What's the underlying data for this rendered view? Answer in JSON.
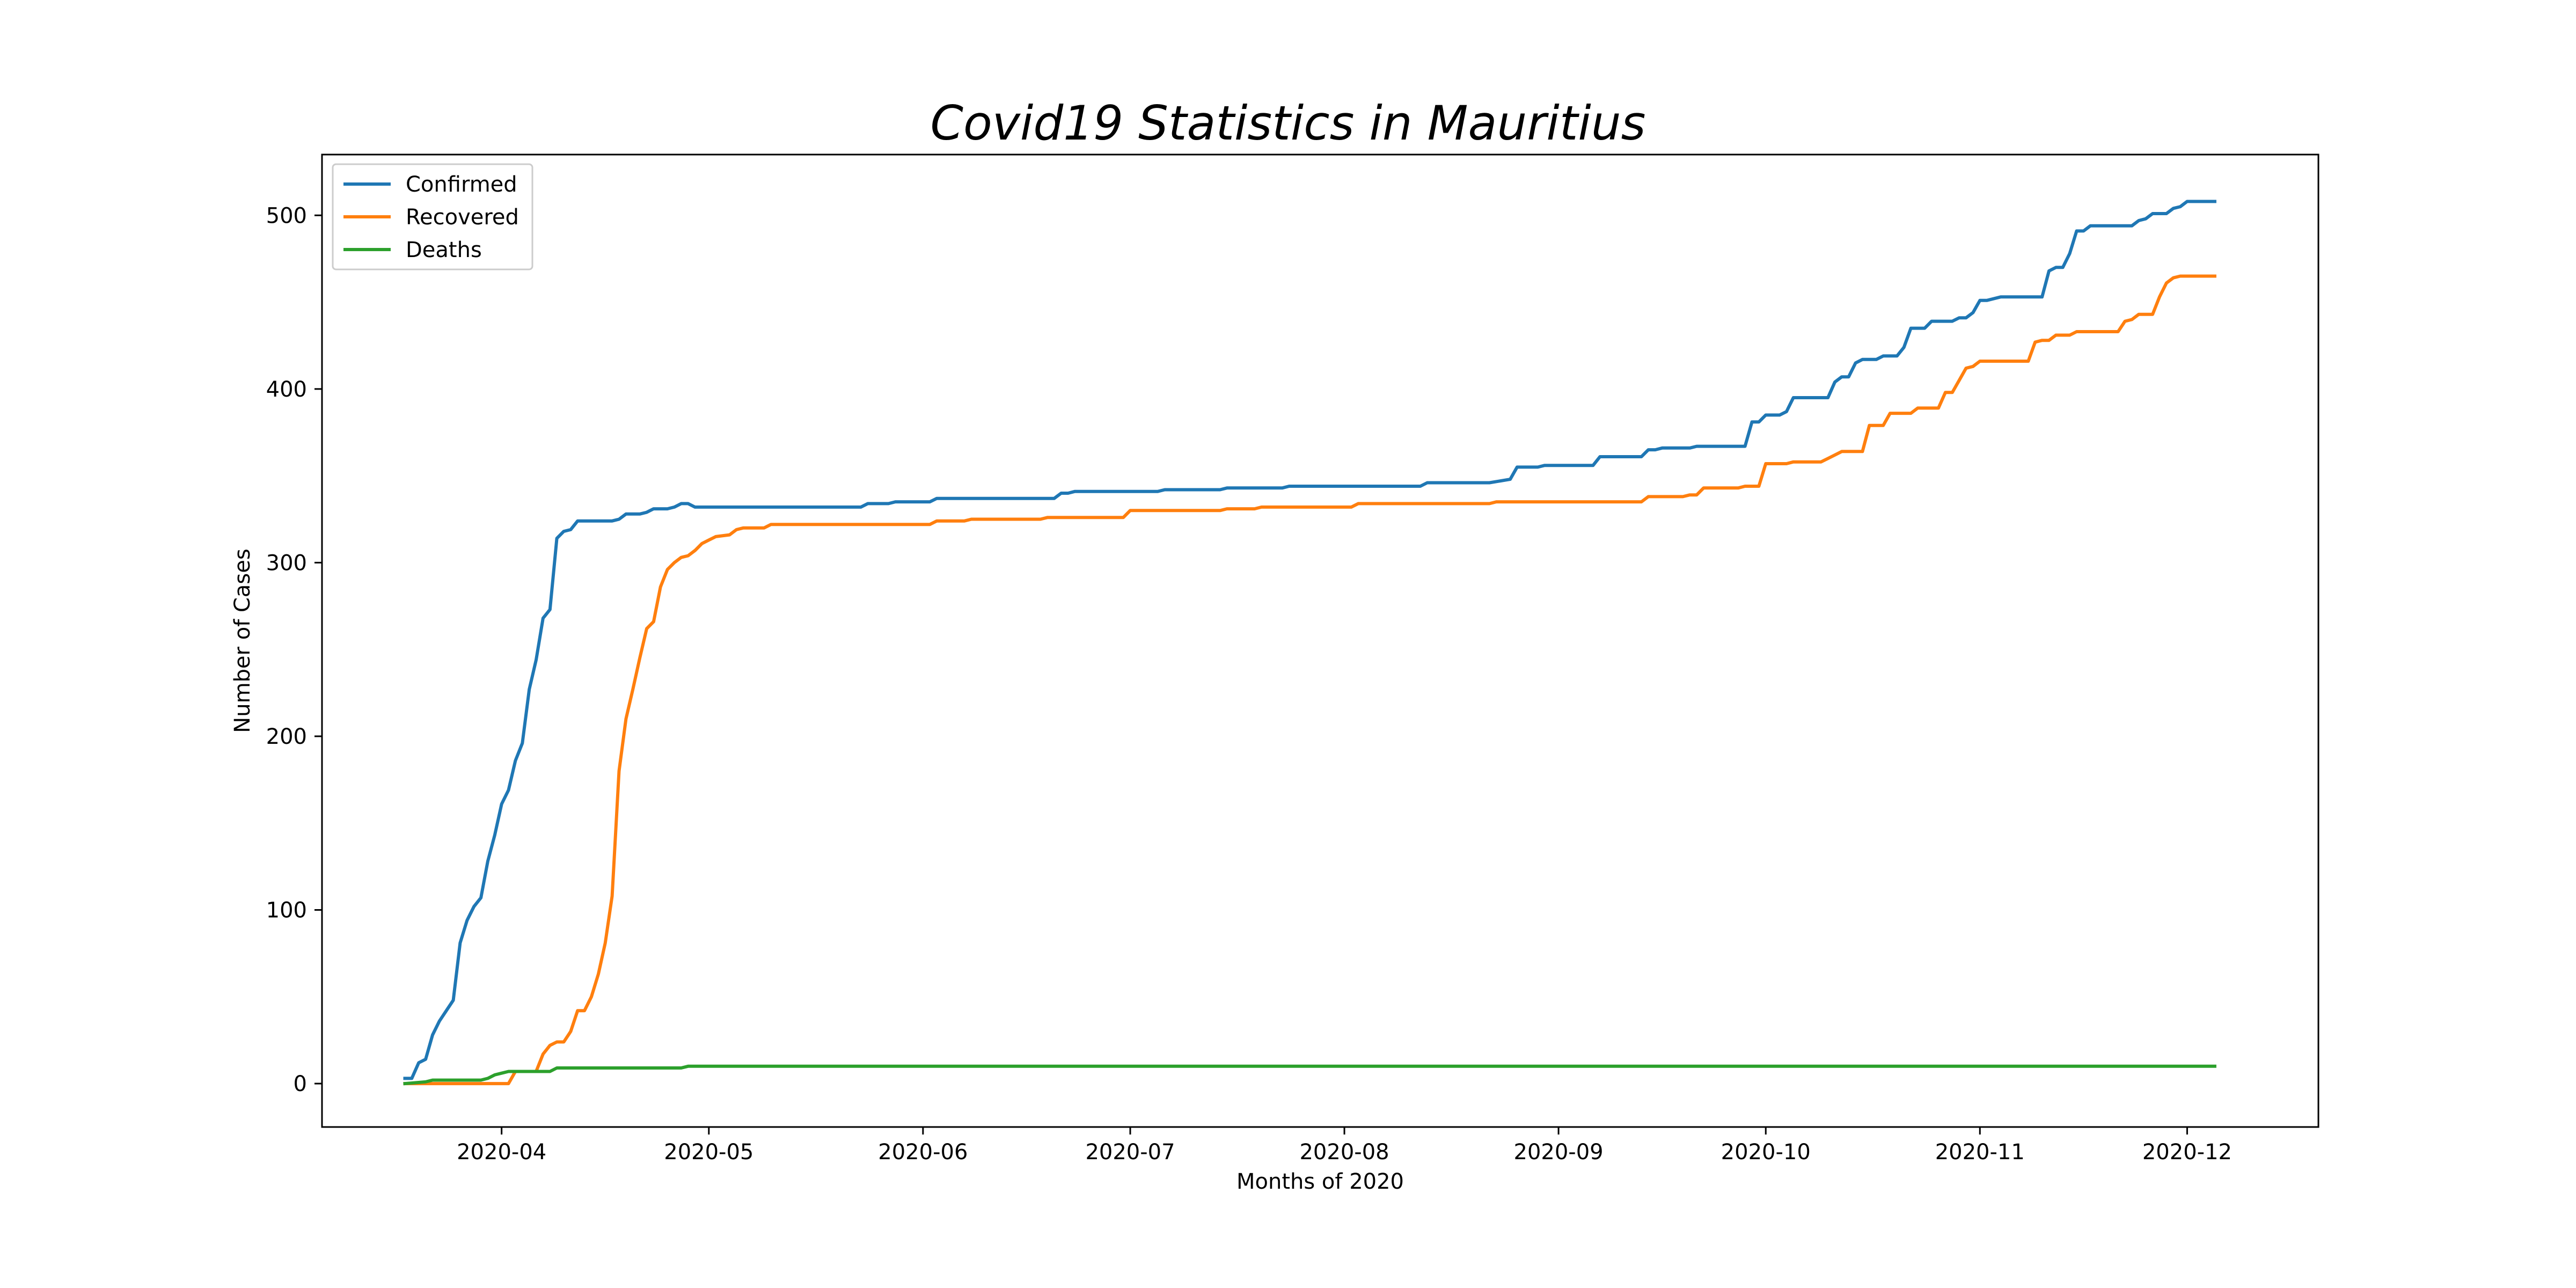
{
  "chart_data": {
    "type": "line",
    "title": "Covid19 Statistics in Mauritius",
    "xlabel": "Months of 2020",
    "ylabel": "Number of Cases",
    "xlim": [
      "2020-03-06",
      "2020-12-20"
    ],
    "ylim": [
      -25,
      535
    ],
    "xticks": [
      "2020-04-01",
      "2020-05-01",
      "2020-06-01",
      "2020-07-01",
      "2020-08-01",
      "2020-09-01",
      "2020-10-01",
      "2020-11-01",
      "2020-12-01"
    ],
    "xtick_labels": [
      "2020-04",
      "2020-05",
      "2020-06",
      "2020-07",
      "2020-08",
      "2020-09",
      "2020-10",
      "2020-11",
      "2020-12"
    ],
    "yticks": [
      0,
      100,
      200,
      300,
      400,
      500
    ],
    "ytick_labels": [
      "0",
      "100",
      "200",
      "300",
      "400",
      "500"
    ],
    "grid": false,
    "legend_position": "top-left",
    "series": [
      {
        "name": "Confirmed",
        "color": "#1f77b4",
        "points": [
          [
            "2020-03-18",
            3
          ],
          [
            "2020-03-19",
            3
          ],
          [
            "2020-03-20",
            12
          ],
          [
            "2020-03-21",
            14
          ],
          [
            "2020-03-22",
            28
          ],
          [
            "2020-03-23",
            36
          ],
          [
            "2020-03-24",
            42
          ],
          [
            "2020-03-25",
            48
          ],
          [
            "2020-03-26",
            81
          ],
          [
            "2020-03-27",
            94
          ],
          [
            "2020-03-28",
            102
          ],
          [
            "2020-03-29",
            107
          ],
          [
            "2020-03-30",
            128
          ],
          [
            "2020-03-31",
            143
          ],
          [
            "2020-04-01",
            161
          ],
          [
            "2020-04-02",
            169
          ],
          [
            "2020-04-03",
            186
          ],
          [
            "2020-04-04",
            196
          ],
          [
            "2020-04-05",
            227
          ],
          [
            "2020-04-06",
            244
          ],
          [
            "2020-04-07",
            268
          ],
          [
            "2020-04-08",
            273
          ],
          [
            "2020-04-09",
            314
          ],
          [
            "2020-04-10",
            318
          ],
          [
            "2020-04-11",
            319
          ],
          [
            "2020-04-12",
            324
          ],
          [
            "2020-04-17",
            324
          ],
          [
            "2020-04-18",
            325
          ],
          [
            "2020-04-19",
            328
          ],
          [
            "2020-04-21",
            328
          ],
          [
            "2020-04-22",
            329
          ],
          [
            "2020-04-23",
            331
          ],
          [
            "2020-04-25",
            331
          ],
          [
            "2020-04-26",
            332
          ],
          [
            "2020-04-27",
            334
          ],
          [
            "2020-04-28",
            334
          ],
          [
            "2020-04-29",
            332
          ],
          [
            "2020-05-23",
            332
          ],
          [
            "2020-05-24",
            334
          ],
          [
            "2020-05-27",
            334
          ],
          [
            "2020-05-28",
            335
          ],
          [
            "2020-06-02",
            335
          ],
          [
            "2020-06-03",
            337
          ],
          [
            "2020-06-20",
            337
          ],
          [
            "2020-06-21",
            340
          ],
          [
            "2020-06-22",
            340
          ],
          [
            "2020-06-23",
            341
          ],
          [
            "2020-07-05",
            341
          ],
          [
            "2020-07-06",
            342
          ],
          [
            "2020-07-14",
            342
          ],
          [
            "2020-07-15",
            343
          ],
          [
            "2020-07-23",
            343
          ],
          [
            "2020-07-24",
            344
          ],
          [
            "2020-08-12",
            344
          ],
          [
            "2020-08-13",
            346
          ],
          [
            "2020-08-22",
            346
          ],
          [
            "2020-08-25",
            348
          ],
          [
            "2020-08-26",
            355
          ],
          [
            "2020-08-29",
            355
          ],
          [
            "2020-08-30",
            356
          ],
          [
            "2020-09-06",
            356
          ],
          [
            "2020-09-07",
            361
          ],
          [
            "2020-09-13",
            361
          ],
          [
            "2020-09-14",
            365
          ],
          [
            "2020-09-15",
            365
          ],
          [
            "2020-09-16",
            366
          ],
          [
            "2020-09-20",
            366
          ],
          [
            "2020-09-21",
            367
          ],
          [
            "2020-09-28",
            367
          ],
          [
            "2020-09-29",
            381
          ],
          [
            "2020-09-30",
            381
          ],
          [
            "2020-10-01",
            385
          ],
          [
            "2020-10-03",
            385
          ],
          [
            "2020-10-04",
            387
          ],
          [
            "2020-10-05",
            395
          ],
          [
            "2020-10-10",
            395
          ],
          [
            "2020-10-11",
            404
          ],
          [
            "2020-10-12",
            407
          ],
          [
            "2020-10-13",
            407
          ],
          [
            "2020-10-14",
            415
          ],
          [
            "2020-10-15",
            417
          ],
          [
            "2020-10-17",
            417
          ],
          [
            "2020-10-18",
            419
          ],
          [
            "2020-10-20",
            419
          ],
          [
            "2020-10-21",
            424
          ],
          [
            "2020-10-22",
            435
          ],
          [
            "2020-10-24",
            435
          ],
          [
            "2020-10-25",
            439
          ],
          [
            "2020-10-28",
            439
          ],
          [
            "2020-10-29",
            441
          ],
          [
            "2020-10-30",
            441
          ],
          [
            "2020-10-31",
            444
          ],
          [
            "2020-11-01",
            451
          ],
          [
            "2020-11-02",
            451
          ],
          [
            "2020-11-04",
            453
          ],
          [
            "2020-11-10",
            453
          ],
          [
            "2020-11-11",
            468
          ],
          [
            "2020-11-12",
            470
          ],
          [
            "2020-11-13",
            470
          ],
          [
            "2020-11-14",
            478
          ],
          [
            "2020-11-15",
            491
          ],
          [
            "2020-11-16",
            491
          ],
          [
            "2020-11-17",
            494
          ],
          [
            "2020-11-23",
            494
          ],
          [
            "2020-11-24",
            497
          ],
          [
            "2020-11-25",
            498
          ],
          [
            "2020-11-26",
            501
          ],
          [
            "2020-11-28",
            501
          ],
          [
            "2020-11-29",
            504
          ],
          [
            "2020-11-30",
            505
          ],
          [
            "2020-12-01",
            508
          ],
          [
            "2020-12-05",
            508
          ]
        ]
      },
      {
        "name": "Recovered",
        "color": "#ff7f0e",
        "points": [
          [
            "2020-03-18",
            0
          ],
          [
            "2020-04-02",
            0
          ],
          [
            "2020-04-03",
            7
          ],
          [
            "2020-04-06",
            7
          ],
          [
            "2020-04-07",
            17
          ],
          [
            "2020-04-08",
            22
          ],
          [
            "2020-04-09",
            24
          ],
          [
            "2020-04-10",
            24
          ],
          [
            "2020-04-11",
            30
          ],
          [
            "2020-04-12",
            42
          ],
          [
            "2020-04-13",
            42
          ],
          [
            "2020-04-14",
            50
          ],
          [
            "2020-04-15",
            63
          ],
          [
            "2020-04-16",
            81
          ],
          [
            "2020-04-17",
            108
          ],
          [
            "2020-04-18",
            180
          ],
          [
            "2020-04-19",
            210
          ],
          [
            "2020-04-20",
            227
          ],
          [
            "2020-04-21",
            245
          ],
          [
            "2020-04-22",
            262
          ],
          [
            "2020-04-23",
            266
          ],
          [
            "2020-04-24",
            286
          ],
          [
            "2020-04-25",
            296
          ],
          [
            "2020-04-26",
            300
          ],
          [
            "2020-04-27",
            303
          ],
          [
            "2020-04-28",
            304
          ],
          [
            "2020-04-29",
            307
          ],
          [
            "2020-04-30",
            311
          ],
          [
            "2020-05-01",
            313
          ],
          [
            "2020-05-02",
            315
          ],
          [
            "2020-05-04",
            316
          ],
          [
            "2020-05-05",
            319
          ],
          [
            "2020-05-06",
            320
          ],
          [
            "2020-05-09",
            320
          ],
          [
            "2020-05-10",
            322
          ],
          [
            "2020-06-02",
            322
          ],
          [
            "2020-06-03",
            324
          ],
          [
            "2020-06-07",
            324
          ],
          [
            "2020-06-08",
            325
          ],
          [
            "2020-06-18",
            325
          ],
          [
            "2020-06-19",
            326
          ],
          [
            "2020-06-30",
            326
          ],
          [
            "2020-07-01",
            330
          ],
          [
            "2020-07-14",
            330
          ],
          [
            "2020-07-15",
            331
          ],
          [
            "2020-07-19",
            331
          ],
          [
            "2020-07-20",
            332
          ],
          [
            "2020-08-02",
            332
          ],
          [
            "2020-08-03",
            334
          ],
          [
            "2020-08-22",
            334
          ],
          [
            "2020-08-23",
            335
          ],
          [
            "2020-09-13",
            335
          ],
          [
            "2020-09-14",
            338
          ],
          [
            "2020-09-19",
            338
          ],
          [
            "2020-09-20",
            339
          ],
          [
            "2020-09-21",
            339
          ],
          [
            "2020-09-22",
            343
          ],
          [
            "2020-09-27",
            343
          ],
          [
            "2020-09-28",
            344
          ],
          [
            "2020-09-30",
            344
          ],
          [
            "2020-10-01",
            357
          ],
          [
            "2020-10-04",
            357
          ],
          [
            "2020-10-05",
            358
          ],
          [
            "2020-10-09",
            358
          ],
          [
            "2020-10-10",
            360
          ],
          [
            "2020-10-11",
            362
          ],
          [
            "2020-10-12",
            364
          ],
          [
            "2020-10-15",
            364
          ],
          [
            "2020-10-16",
            379
          ],
          [
            "2020-10-18",
            379
          ],
          [
            "2020-10-19",
            386
          ],
          [
            "2020-10-22",
            386
          ],
          [
            "2020-10-23",
            389
          ],
          [
            "2020-10-26",
            389
          ],
          [
            "2020-10-27",
            398
          ],
          [
            "2020-10-28",
            398
          ],
          [
            "2020-10-29",
            405
          ],
          [
            "2020-10-30",
            412
          ],
          [
            "2020-10-31",
            413
          ],
          [
            "2020-11-01",
            416
          ],
          [
            "2020-11-08",
            416
          ],
          [
            "2020-11-09",
            427
          ],
          [
            "2020-11-10",
            428
          ],
          [
            "2020-11-11",
            428
          ],
          [
            "2020-11-12",
            431
          ],
          [
            "2020-11-14",
            431
          ],
          [
            "2020-11-15",
            433
          ],
          [
            "2020-11-21",
            433
          ],
          [
            "2020-11-22",
            439
          ],
          [
            "2020-11-23",
            440
          ],
          [
            "2020-11-24",
            443
          ],
          [
            "2020-11-26",
            443
          ],
          [
            "2020-11-27",
            453
          ],
          [
            "2020-11-28",
            461
          ],
          [
            "2020-11-29",
            464
          ],
          [
            "2020-11-30",
            465
          ],
          [
            "2020-12-05",
            465
          ]
        ]
      },
      {
        "name": "Deaths",
        "color": "#2ca02c",
        "points": [
          [
            "2020-03-18",
            0
          ],
          [
            "2020-03-21",
            1
          ],
          [
            "2020-03-22",
            2
          ],
          [
            "2020-03-29",
            2
          ],
          [
            "2020-03-30",
            3
          ],
          [
            "2020-03-31",
            5
          ],
          [
            "2020-04-01",
            6
          ],
          [
            "2020-04-02",
            7
          ],
          [
            "2020-04-08",
            7
          ],
          [
            "2020-04-09",
            9
          ],
          [
            "2020-04-27",
            9
          ],
          [
            "2020-04-28",
            10
          ],
          [
            "2020-12-05",
            10
          ]
        ]
      }
    ]
  }
}
